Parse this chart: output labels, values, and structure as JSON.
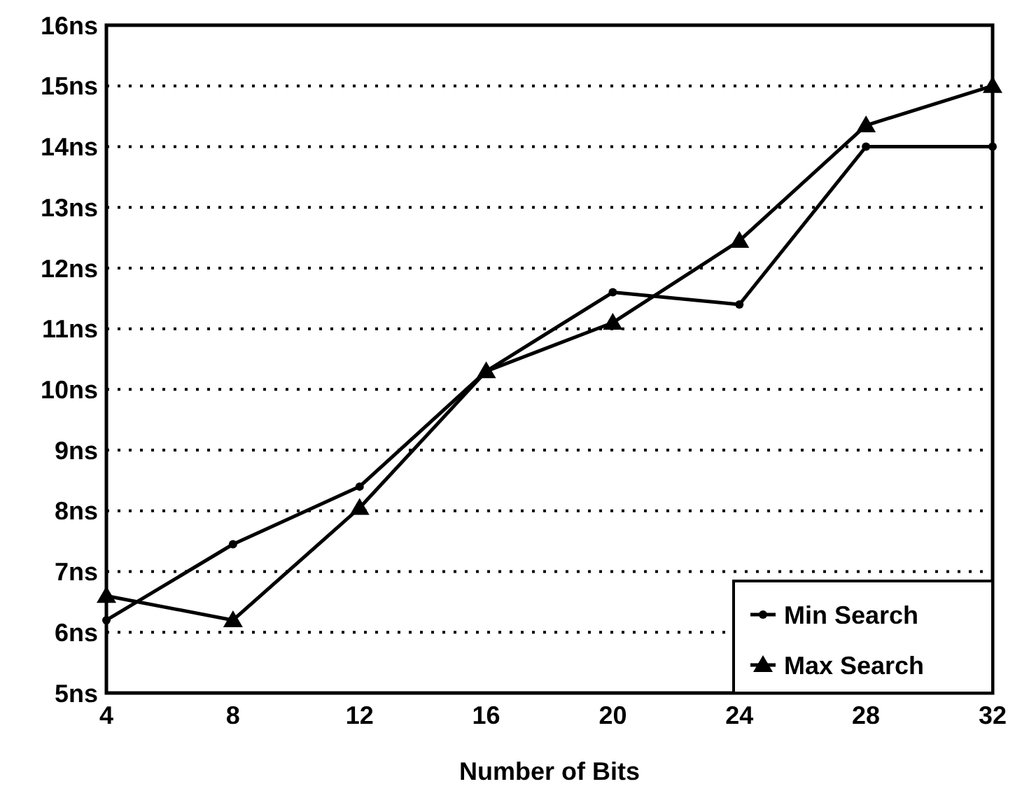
{
  "chart_data": {
    "type": "line",
    "xlabel": "Number of Bits",
    "x": [
      4,
      8,
      12,
      16,
      20,
      24,
      28,
      32
    ],
    "xlim": [
      4,
      32
    ],
    "xticks": [
      4,
      8,
      12,
      16,
      20,
      24,
      28,
      32
    ],
    "ylim": [
      5,
      16
    ],
    "yticks": [
      {
        "value": 5,
        "label": "5ns"
      },
      {
        "value": 6,
        "label": "6ns"
      },
      {
        "value": 7,
        "label": "7ns"
      },
      {
        "value": 8,
        "label": "8ns"
      },
      {
        "value": 9,
        "label": "9ns"
      },
      {
        "value": 10,
        "label": "10ns"
      },
      {
        "value": 11,
        "label": "11ns"
      },
      {
        "value": 12,
        "label": "12ns"
      },
      {
        "value": 13,
        "label": "13ns"
      },
      {
        "value": 14,
        "label": "14ns"
      },
      {
        "value": 15,
        "label": "15ns"
      },
      {
        "value": 16,
        "label": "16ns"
      }
    ],
    "grid": "y",
    "legend": "bottom right",
    "series": [
      {
        "name": "Min Search",
        "color": "#000000",
        "marker": "circle",
        "values": [
          6.2,
          7.45,
          8.4,
          10.3,
          11.6,
          11.4,
          14.0,
          14.0
        ]
      },
      {
        "name": "Max Search",
        "color": "#000000",
        "marker": "triangle",
        "values": [
          6.6,
          6.2,
          8.05,
          10.3,
          11.1,
          12.45,
          14.35,
          15.0
        ]
      }
    ]
  }
}
